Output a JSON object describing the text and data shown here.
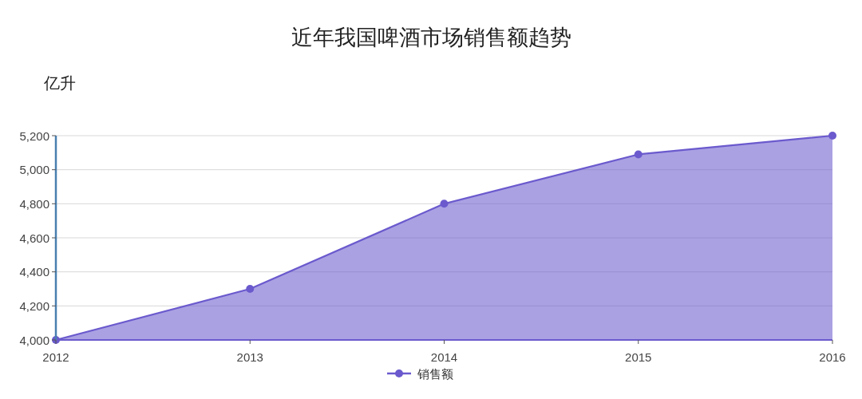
{
  "chart_data": {
    "type": "area",
    "title": "近年我国啤酒市场销售额趋势",
    "ylabel": "亿升",
    "categories": [
      "2012",
      "2013",
      "2014",
      "2015",
      "2016"
    ],
    "series": [
      {
        "name": "销售额",
        "color": "#6a5acd",
        "values": [
          4000,
          4300,
          4800,
          5090,
          5200
        ]
      }
    ],
    "ylim": [
      4000,
      5200
    ],
    "yticks": [
      {
        "value": 4000,
        "label": "4,000"
      },
      {
        "value": 4200,
        "label": "4,200"
      },
      {
        "value": 4400,
        "label": "4,400"
      },
      {
        "value": 4600,
        "label": "4,600"
      },
      {
        "value": 4800,
        "label": "4,800"
      },
      {
        "value": 5000,
        "label": "5,000"
      },
      {
        "value": 5200,
        "label": "5,200"
      }
    ],
    "grid": "y",
    "legend": "bottom",
    "marker": "circle"
  }
}
